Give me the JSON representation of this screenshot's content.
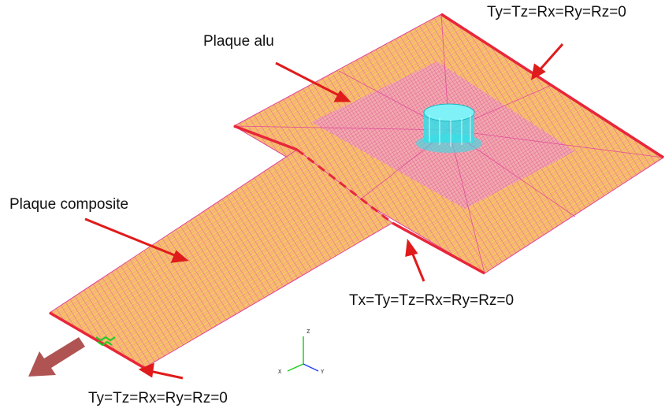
{
  "labels": {
    "plaque_alu": "Plaque alu",
    "plaque_composite": "Plaque composite",
    "bc_top_right": "Ty=Tz=Rx=Ry=Rz=0",
    "bc_middle": "Tx=Ty=Tz=Rx=Ry=Rz=0",
    "bc_bottom_left": "Ty=Tz=Rx=Ry=Rz=0"
  },
  "axes": {
    "x": "X",
    "y": "Y",
    "z": "Z"
  },
  "colors": {
    "mesh_fill": "#f6b27a",
    "mesh_yellow": "#f5d84a",
    "mesh_magenta": "#e0449a",
    "edge_red": "#e8263a",
    "arrow_red": "#e01b1b",
    "load_arrow": "#a94444",
    "hub_cyan": "#33e0e8",
    "axis_green": "#22cc22",
    "axis_blue": "#2244ee"
  },
  "icons": {
    "load_arrow": "thick-arrow-down-left-icon",
    "triad": "xyz-axis-triad-icon",
    "hub": "cylindrical-hub-icon",
    "node_marker": "green-node-marker-icon"
  }
}
